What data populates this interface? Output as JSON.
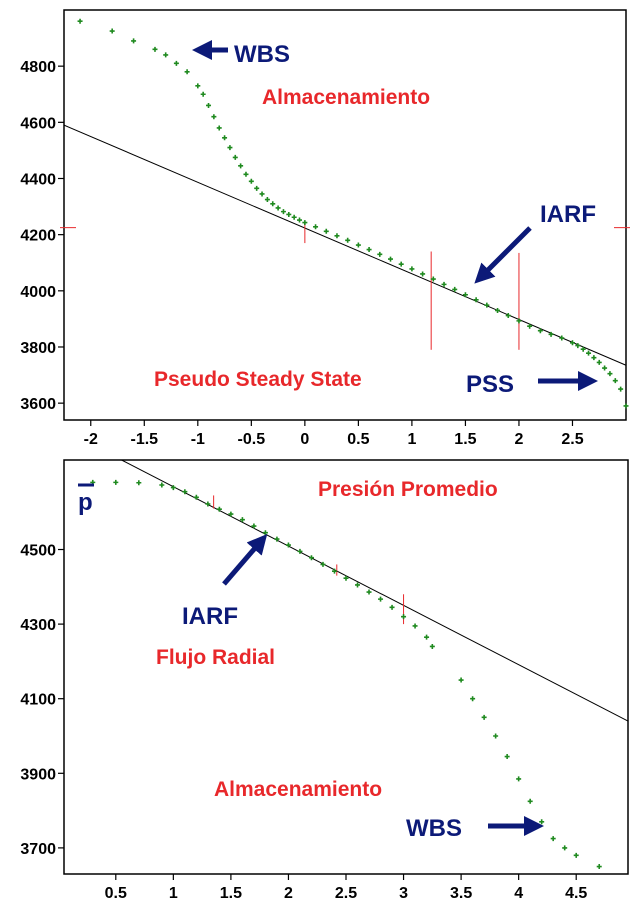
{
  "colors": {
    "points": "#1f8a1f",
    "fit_line": "#000000",
    "markers": "#e8282b",
    "annotation_red": "#e8282b",
    "annotation_blue": "#0c1a78"
  },
  "chart_data": [
    {
      "type": "scatter",
      "title": "",
      "xlabel": "",
      "ylabel": "",
      "xlim": [
        -2.25,
        3.0
      ],
      "ylim": [
        3540,
        5000
      ],
      "x_ticks": [
        -2,
        -1.5,
        -1,
        -0.5,
        0,
        0.5,
        1,
        1.5,
        2,
        2.5
      ],
      "x_tick_labels": [
        "-2",
        "-1.5",
        "-1",
        "-0.5",
        "0",
        "0.5",
        "1",
        "1.5",
        "2",
        "2.5"
      ],
      "y_ticks": [
        3600,
        3800,
        4000,
        4200,
        4400,
        4600,
        4800
      ],
      "y_tick_labels": [
        "3600",
        "3800",
        "4000",
        "4200",
        "4400",
        "4600",
        "4800"
      ],
      "grid": false,
      "series": [
        {
          "values": [
            [
              -2.1,
              4960
            ],
            [
              -1.8,
              4925
            ],
            [
              -1.6,
              4890
            ],
            [
              -1.4,
              4860
            ],
            [
              -1.3,
              4840
            ],
            [
              -1.2,
              4810
            ],
            [
              -1.1,
              4780
            ],
            [
              -1.0,
              4730
            ],
            [
              -0.95,
              4700
            ],
            [
              -0.9,
              4660
            ],
            [
              -0.85,
              4620
            ],
            [
              -0.8,
              4580
            ],
            [
              -0.75,
              4545
            ],
            [
              -0.7,
              4510
            ],
            [
              -0.65,
              4475
            ],
            [
              -0.6,
              4445
            ],
            [
              -0.55,
              4415
            ],
            [
              -0.5,
              4390
            ],
            [
              -0.45,
              4365
            ],
            [
              -0.4,
              4345
            ],
            [
              -0.35,
              4325
            ],
            [
              -0.3,
              4310
            ],
            [
              -0.25,
              4295
            ],
            [
              -0.2,
              4282
            ],
            [
              -0.15,
              4272
            ],
            [
              -0.1,
              4262
            ],
            [
              -0.05,
              4252
            ],
            [
              0.0,
              4243
            ],
            [
              0.1,
              4228
            ],
            [
              0.2,
              4212
            ],
            [
              0.3,
              4196
            ],
            [
              0.4,
              4180
            ],
            [
              0.5,
              4163
            ],
            [
              0.6,
              4147
            ],
            [
              0.7,
              4130
            ],
            [
              0.8,
              4113
            ],
            [
              0.9,
              4095
            ],
            [
              1.0,
              4078
            ],
            [
              1.1,
              4060
            ],
            [
              1.2,
              4042
            ],
            [
              1.3,
              4023
            ],
            [
              1.4,
              4005
            ],
            [
              1.5,
              3986
            ],
            [
              1.6,
              3968
            ],
            [
              1.7,
              3949
            ],
            [
              1.8,
              3930
            ],
            [
              1.9,
              3912
            ],
            [
              2.0,
              3893
            ],
            [
              2.1,
              3874
            ],
            [
              2.2,
              3858
            ],
            [
              2.3,
              3845
            ],
            [
              2.4,
              3832
            ],
            [
              2.5,
              3815
            ],
            [
              2.55,
              3805
            ],
            [
              2.6,
              3792
            ],
            [
              2.65,
              3778
            ],
            [
              2.7,
              3762
            ],
            [
              2.75,
              3745
            ],
            [
              2.8,
              3725
            ],
            [
              2.85,
              3705
            ],
            [
              2.9,
              3680
            ],
            [
              2.95,
              3650
            ],
            [
              3.0,
              3590
            ]
          ]
        }
      ],
      "fit_line": [
        [
          -2.25,
          4590
        ],
        [
          3.0,
          3735
        ]
      ],
      "vertical_markers": [
        {
          "x": 0.0,
          "y_from": 4170,
          "y_to": 4250
        },
        {
          "x": 1.18,
          "y_from": 3790,
          "y_to": 4140
        },
        {
          "x": 2.0,
          "y_from": 3790,
          "y_to": 4135
        }
      ],
      "edge_markers_y": 4225,
      "annotations": [
        {
          "text": "WBS",
          "color": "blue",
          "arrow": "left"
        },
        {
          "text": "Almacenamiento",
          "color": "red"
        },
        {
          "text": "IARF",
          "color": "blue",
          "arrow": "down-left"
        },
        {
          "text": "Pseudo Steady State",
          "color": "red"
        },
        {
          "text": "PSS",
          "color": "blue",
          "arrow": "right"
        }
      ]
    },
    {
      "type": "scatter",
      "title": "",
      "xlabel": "",
      "ylabel": "",
      "y_symbol": "p",
      "xlim": [
        0.05,
        4.95
      ],
      "ylim": [
        3630,
        4740
      ],
      "x_ticks": [
        0.5,
        1,
        1.5,
        2,
        2.5,
        3,
        3.5,
        4,
        4.5
      ],
      "x_tick_labels": [
        "0.5",
        "1",
        "1.5",
        "2",
        "2.5",
        "3",
        "3.5",
        "4",
        "4.5"
      ],
      "y_ticks": [
        3700,
        3900,
        4100,
        4300,
        4500
      ],
      "y_tick_labels": [
        "3700",
        "3900",
        "4100",
        "4300",
        "4500"
      ],
      "grid": false,
      "series": [
        {
          "values": [
            [
              0.3,
              4680
            ],
            [
              0.5,
              4680
            ],
            [
              0.7,
              4679
            ],
            [
              0.9,
              4673
            ],
            [
              1.0,
              4666
            ],
            [
              1.1,
              4655
            ],
            [
              1.2,
              4640
            ],
            [
              1.3,
              4622
            ],
            [
              1.4,
              4608
            ],
            [
              1.5,
              4595
            ],
            [
              1.6,
              4580
            ],
            [
              1.7,
              4563
            ],
            [
              1.8,
              4545
            ],
            [
              1.9,
              4528
            ],
            [
              2.0,
              4512
            ],
            [
              2.1,
              4495
            ],
            [
              2.2,
              4478
            ],
            [
              2.3,
              4460
            ],
            [
              2.4,
              4442
            ],
            [
              2.5,
              4423
            ],
            [
              2.6,
              4405
            ],
            [
              2.7,
              4386
            ],
            [
              2.8,
              4367
            ],
            [
              2.9,
              4345
            ],
            [
              3.0,
              4320
            ],
            [
              3.1,
              4295
            ],
            [
              3.2,
              4265
            ],
            [
              3.25,
              4240
            ],
            [
              3.5,
              4150
            ],
            [
              3.6,
              4100
            ],
            [
              3.7,
              4050
            ],
            [
              3.8,
              4000
            ],
            [
              3.9,
              3945
            ],
            [
              4.0,
              3885
            ],
            [
              4.1,
              3825
            ],
            [
              4.2,
              3770
            ],
            [
              4.3,
              3725
            ],
            [
              4.4,
              3700
            ],
            [
              4.5,
              3680
            ],
            [
              4.7,
              3650
            ]
          ]
        }
      ],
      "fit_line": [
        [
          0.55,
          4740
        ],
        [
          4.95,
          4040
        ]
      ],
      "vertical_markers": [
        {
          "x": 1.35,
          "y_from": 4610,
          "y_to": 4645
        },
        {
          "x": 2.42,
          "y_from": 4430,
          "y_to": 4460
        },
        {
          "x": 3.0,
          "y_from": 4300,
          "y_to": 4380
        }
      ],
      "annotations": [
        {
          "text": "Presión Promedio",
          "color": "red"
        },
        {
          "text": "IARF",
          "color": "blue",
          "arrow": "up-right"
        },
        {
          "text": "Flujo Radial",
          "color": "red"
        },
        {
          "text": "Almacenamiento",
          "color": "red"
        },
        {
          "text": "WBS",
          "color": "blue",
          "arrow": "right"
        }
      ]
    }
  ]
}
